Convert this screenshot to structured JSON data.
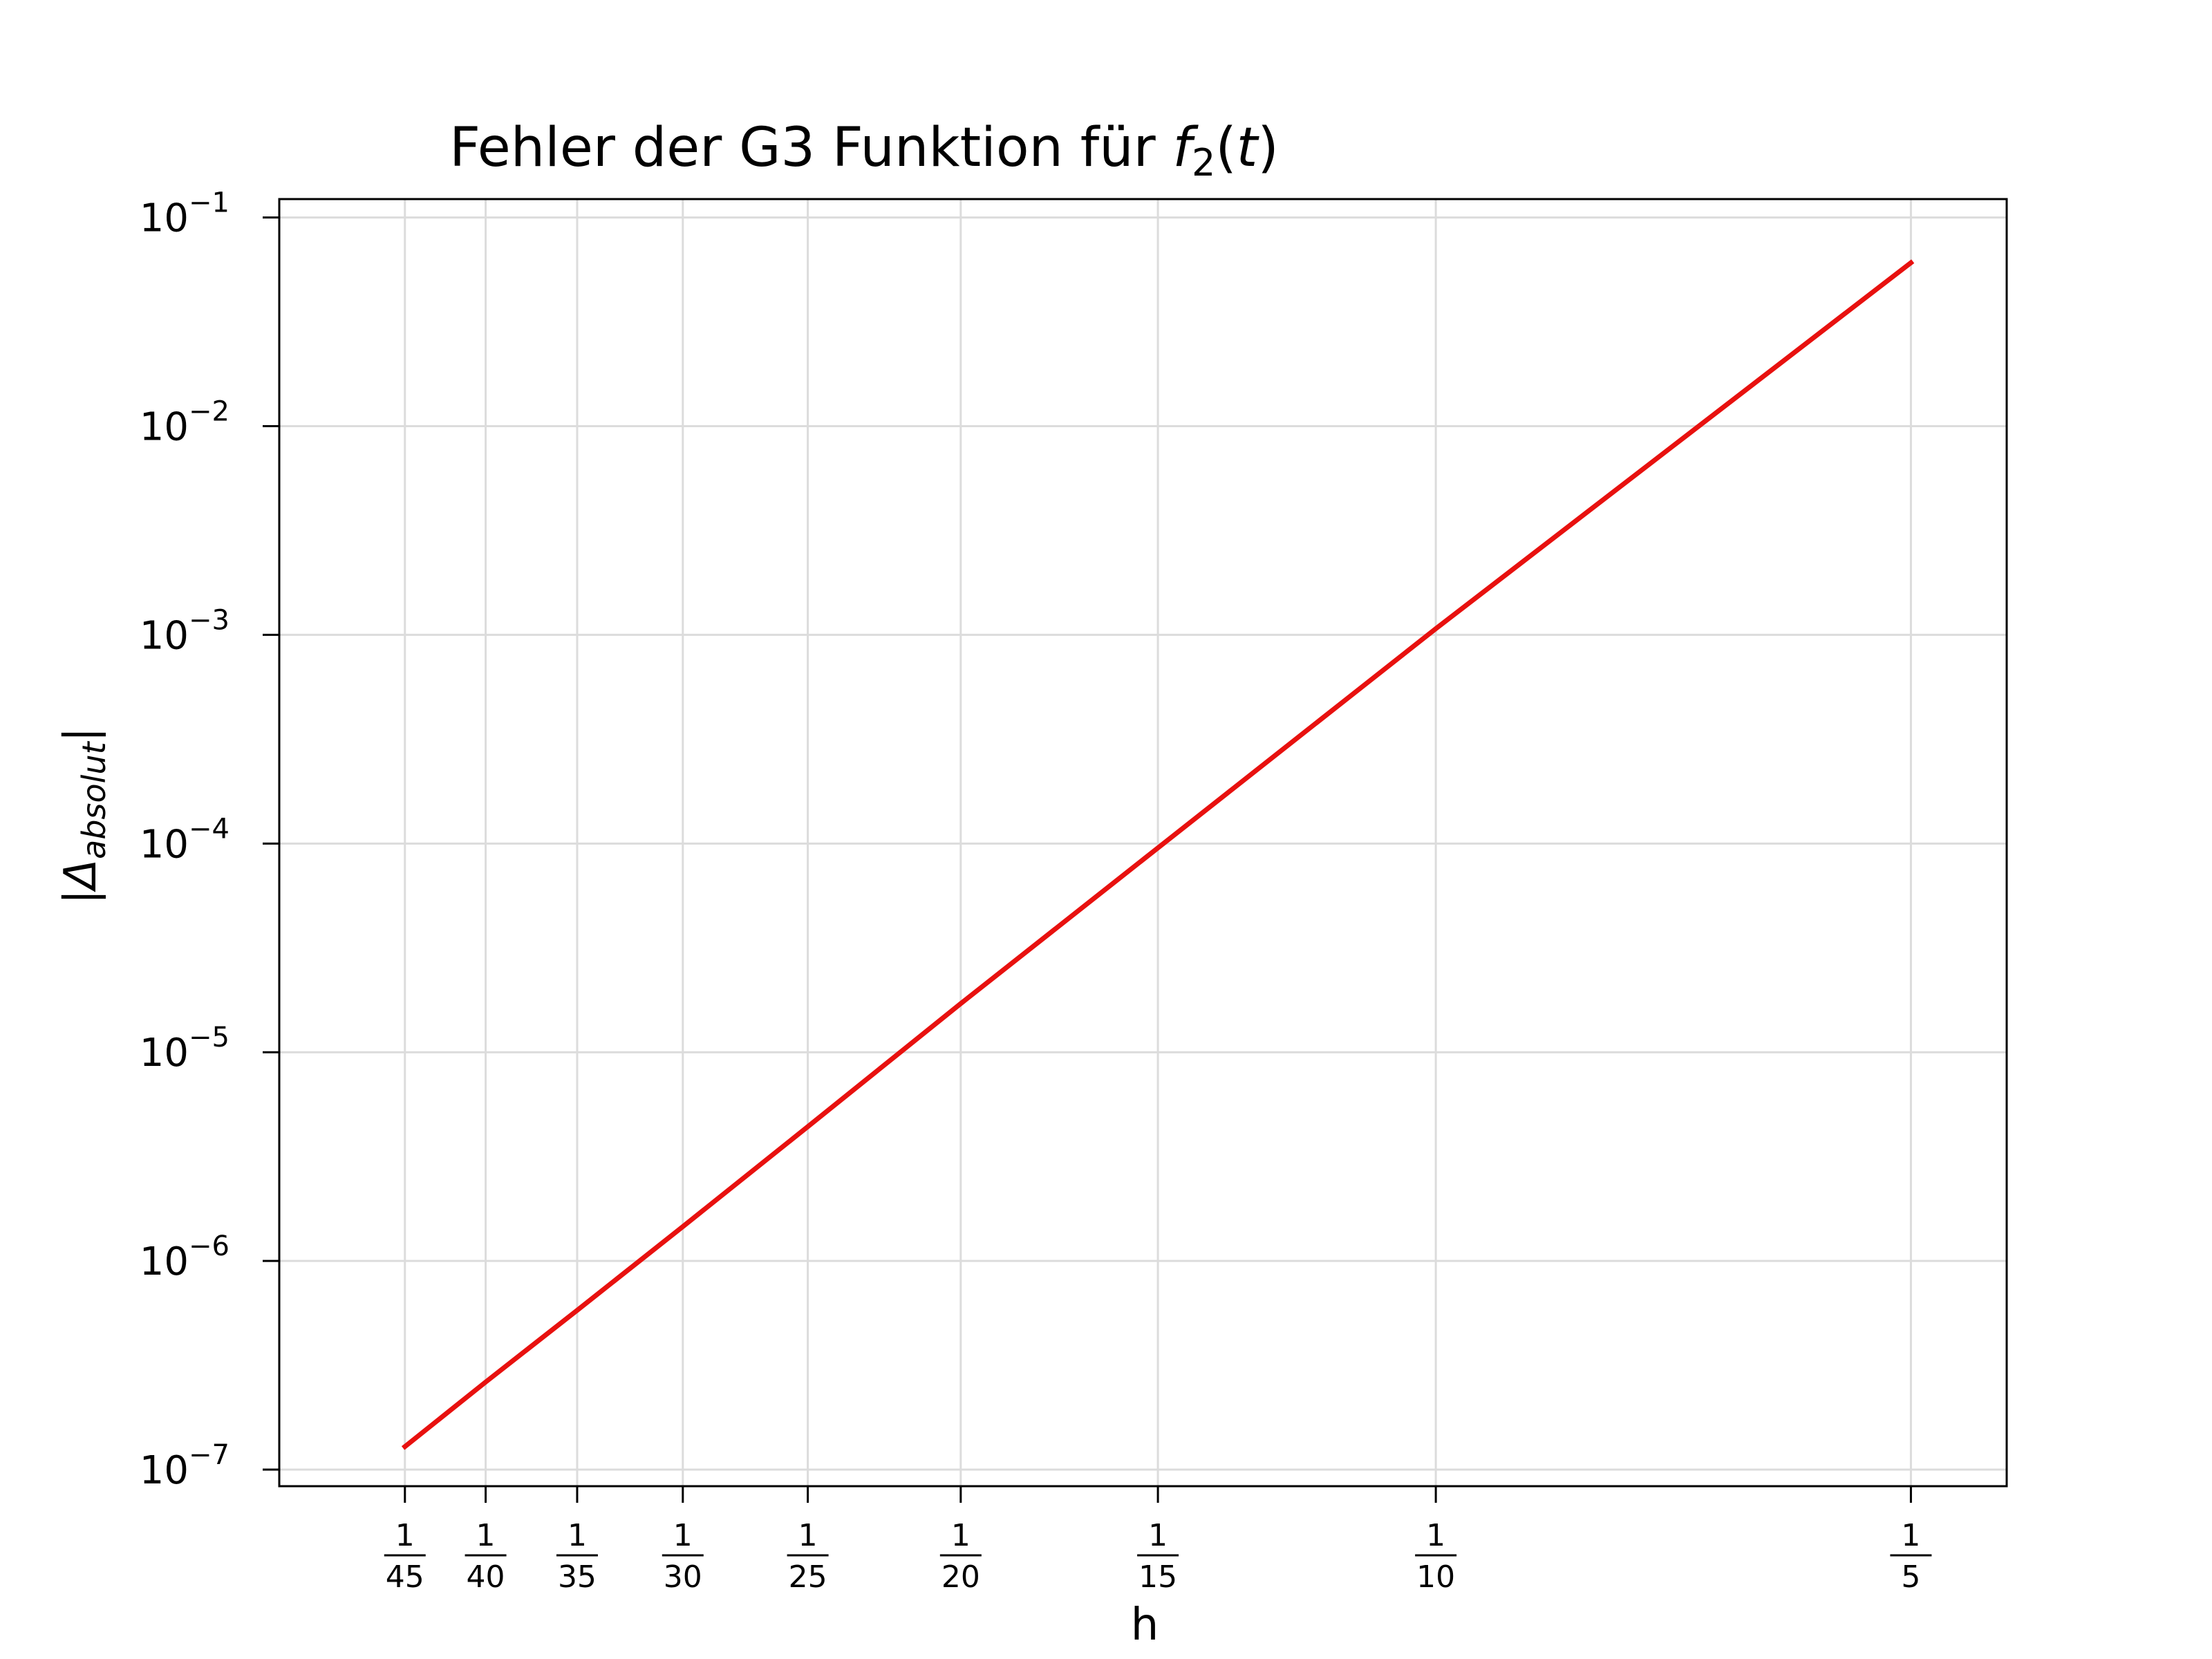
{
  "chart_data": {
    "type": "line",
    "title": {
      "prefix": "Fehler der G3 Funktion für ",
      "func": "f",
      "func_sub": "2",
      "arg_open": "(",
      "arg": "t",
      "arg_close": ")"
    },
    "xlabel": "h",
    "ylabel": {
      "open": "|",
      "symbol": "Δ",
      "subscript": "absolut",
      "close": "|"
    },
    "x_scale": "log",
    "y_scale": "log",
    "grid": true,
    "xlim": [
      0.0185,
      0.23
    ],
    "ylim": [
      8.33e-08,
      0.1225
    ],
    "x_ticks": [
      {
        "value": 0.022222,
        "num": "1",
        "den": "45"
      },
      {
        "value": 0.025,
        "num": "1",
        "den": "40"
      },
      {
        "value": 0.028571,
        "num": "1",
        "den": "35"
      },
      {
        "value": 0.033333,
        "num": "1",
        "den": "30"
      },
      {
        "value": 0.04,
        "num": "1",
        "den": "25"
      },
      {
        "value": 0.05,
        "num": "1",
        "den": "20"
      },
      {
        "value": 0.066667,
        "num": "1",
        "den": "15"
      },
      {
        "value": 0.1,
        "num": "1",
        "den": "10"
      },
      {
        "value": 0.2,
        "num": "1",
        "den": "5"
      }
    ],
    "y_ticks": [
      {
        "value": 0.1,
        "base": "10",
        "exp": "−1"
      },
      {
        "value": 0.01,
        "base": "10",
        "exp": "−2"
      },
      {
        "value": 0.001,
        "base": "10",
        "exp": "−3"
      },
      {
        "value": 0.0001,
        "base": "10",
        "exp": "−4"
      },
      {
        "value": 1e-05,
        "base": "10",
        "exp": "−5"
      },
      {
        "value": 1e-06,
        "base": "10",
        "exp": "−6"
      },
      {
        "value": 1e-07,
        "base": "10",
        "exp": "−7"
      }
    ],
    "series": [
      {
        "color": "#e8110f",
        "x": [
          0.022222,
          0.025,
          0.028571,
          0.033333,
          0.04,
          0.05,
          0.066667,
          0.1,
          0.2
        ],
        "y": [
          1.29e-07,
          2.63e-07,
          5.8e-07,
          1.46e-06,
          4.4e-06,
          1.71e-05,
          9.53e-05,
          0.00107,
          0.0607
        ]
      }
    ]
  }
}
